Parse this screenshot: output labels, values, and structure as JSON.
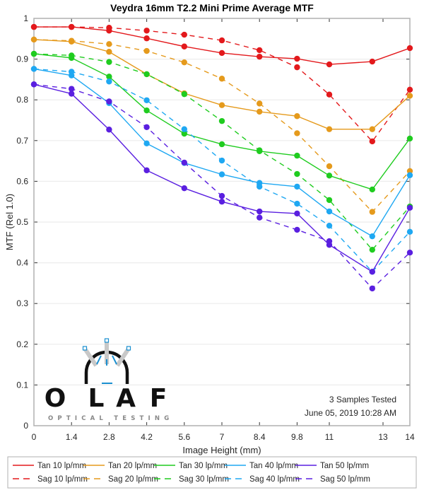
{
  "chart_data": {
    "type": "line",
    "title": "Veydra 16mm T2.2 Mini Prime Average MTF",
    "xlabel": "Image Height (mm)",
    "ylabel": "MTF (Rel 1.0)",
    "xlim": [
      0,
      14
    ],
    "ylim": [
      0,
      1
    ],
    "xticks": [
      0,
      1.4,
      2.8,
      4.2,
      5.6,
      7,
      8.4,
      9.8,
      11,
      13,
      14
    ],
    "xtick_labels": [
      "0",
      "1.4",
      "2.8",
      "4.2",
      "5.6",
      "7",
      "8.4",
      "9.8",
      "11",
      "13",
      "14"
    ],
    "yticks": [
      0,
      0.1,
      0.2,
      0.3,
      0.4,
      0.5,
      0.6,
      0.7,
      0.8,
      0.9,
      1
    ],
    "ytick_labels": [
      "0",
      "0.1",
      "0.2",
      "0.3",
      "0.4",
      "0.5",
      "0.6",
      "0.7",
      "0.8",
      "0.9",
      "1"
    ],
    "grid": "horizontal",
    "legend_placement": "bottom",
    "x": [
      0,
      1.4,
      2.8,
      4.2,
      5.6,
      7,
      8.4,
      9.8,
      11,
      12.6,
      14
    ],
    "series": [
      {
        "name": "Tan 10 lp/mm",
        "color": "#e3191c",
        "style": "solid",
        "values": [
          0.979,
          0.979,
          0.97,
          0.951,
          0.931,
          0.915,
          0.906,
          0.901,
          0.887,
          0.894,
          0.927
        ]
      },
      {
        "name": "Sag 10 lp/mm",
        "color": "#e3191c",
        "style": "dashed",
        "values": [
          0.979,
          0.979,
          0.977,
          0.97,
          0.96,
          0.946,
          0.922,
          0.88,
          0.813,
          0.698,
          0.825
        ]
      },
      {
        "name": "Tan 20 lp/mm",
        "color": "#e59a1c",
        "style": "solid",
        "values": [
          0.948,
          0.943,
          0.918,
          0.863,
          0.816,
          0.787,
          0.771,
          0.76,
          0.728,
          0.728,
          0.81
        ]
      },
      {
        "name": "Sag 20 lp/mm",
        "color": "#e59a1c",
        "style": "dashed",
        "values": [
          0.948,
          0.945,
          0.937,
          0.92,
          0.892,
          0.852,
          0.791,
          0.718,
          0.637,
          0.525,
          0.625
        ]
      },
      {
        "name": "Tan 30 lp/mm",
        "color": "#1fcc1f",
        "style": "solid",
        "values": [
          0.913,
          0.903,
          0.857,
          0.774,
          0.717,
          0.691,
          0.674,
          0.663,
          0.614,
          0.58,
          0.705
        ]
      },
      {
        "name": "Sag 30 lp/mm",
        "color": "#1fcc1f",
        "style": "dashed",
        "values": [
          0.913,
          0.909,
          0.893,
          0.863,
          0.814,
          0.748,
          0.676,
          0.618,
          0.554,
          0.432,
          0.538
        ]
      },
      {
        "name": "Tan 40 lp/mm",
        "color": "#1fa8f2",
        "style": "solid",
        "values": [
          0.876,
          0.86,
          0.792,
          0.693,
          0.645,
          0.617,
          0.596,
          0.587,
          0.526,
          0.465,
          0.615
        ]
      },
      {
        "name": "Sag 40 lp/mm",
        "color": "#1fa8f2",
        "style": "dashed",
        "values": [
          0.876,
          0.869,
          0.845,
          0.799,
          0.728,
          0.651,
          0.587,
          0.545,
          0.491,
          0.378,
          0.476
        ]
      },
      {
        "name": "Tan 50 lp/mm",
        "color": "#5a1fe0",
        "style": "solid",
        "values": [
          0.838,
          0.815,
          0.727,
          0.627,
          0.583,
          0.55,
          0.526,
          0.521,
          0.444,
          0.378,
          0.535
        ]
      },
      {
        "name": "Sag 50 lp/mm",
        "color": "#5a1fe0",
        "style": "dashed",
        "values": [
          0.838,
          0.827,
          0.796,
          0.733,
          0.646,
          0.564,
          0.511,
          0.481,
          0.453,
          0.337,
          0.425
        ]
      }
    ],
    "annotations": [
      "3 Samples Tested",
      "June 05, 2019 10:28 AM"
    ]
  },
  "logo": {
    "letters": [
      "O",
      "L",
      "A",
      "F"
    ],
    "subtitle": "OPTICAL TESTING",
    "ink_color": "#111111",
    "accent_color": "#1a8fd0",
    "grey_color": "#c8c8c8"
  },
  "colors": {
    "axis": "#b0b0b0",
    "grid": "#ececec"
  }
}
